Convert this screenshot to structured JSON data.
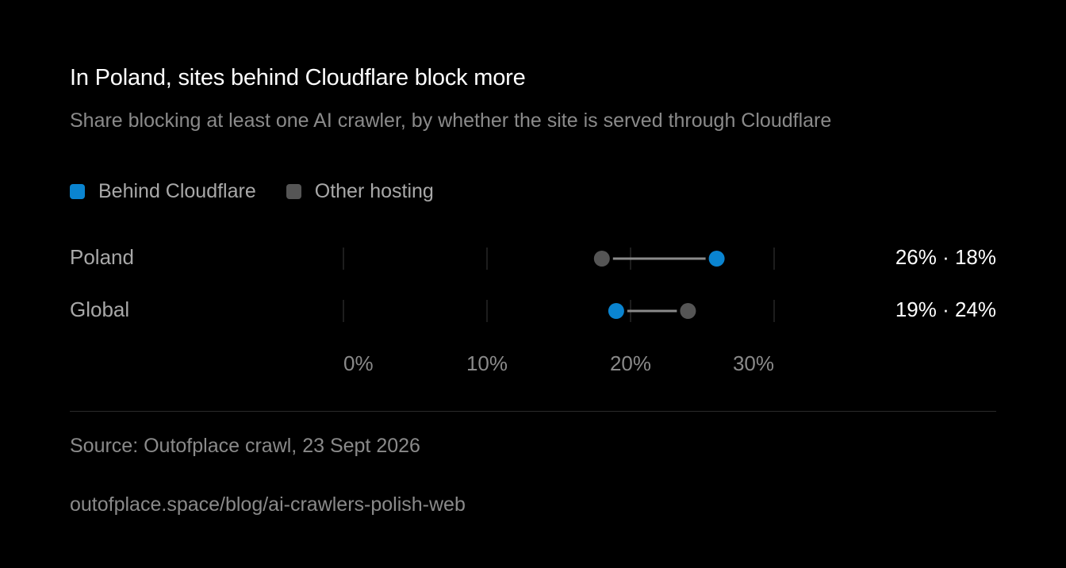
{
  "header": {
    "title": "In Poland, sites behind Cloudflare block more",
    "subtitle": "Share blocking at least one AI crawler, by whether the site is served through Cloudflare"
  },
  "colors": {
    "behind_cloudflare": "#0a84d0",
    "other_hosting": "#555555",
    "connector": "#8a8a8a",
    "gridline": "#3a3a3a",
    "background": "#000000"
  },
  "chart_data": {
    "type": "dumbbell",
    "title": "In Poland, sites behind Cloudflare block more",
    "subtitle": "Share blocking at least one AI crawler, by whether the site is served through Cloudflare",
    "legend": [
      {
        "name": "Behind Cloudflare",
        "color": "#0a84d0"
      },
      {
        "name": "Other hosting",
        "color": "#555555"
      }
    ],
    "legend_position": "top-left",
    "x_unit": "percent",
    "xlim": [
      0,
      30
    ],
    "x_ticks": [
      0,
      10,
      20,
      30
    ],
    "x_tick_labels": [
      "0%",
      "10%",
      "20%",
      "30%"
    ],
    "categories": [
      "Poland",
      "Global"
    ],
    "series": [
      {
        "name": "Behind Cloudflare",
        "values": [
          26,
          19
        ]
      },
      {
        "name": "Other hosting",
        "values": [
          18,
          24
        ]
      }
    ],
    "value_labels": [
      "26% · 18%",
      "19% · 24%"
    ],
    "grid": true
  },
  "footer": {
    "source": "Source: Outofplace crawl, 23 Sept 2026",
    "url": "outofplace.space/blog/ai-crawlers-polish-web"
  }
}
